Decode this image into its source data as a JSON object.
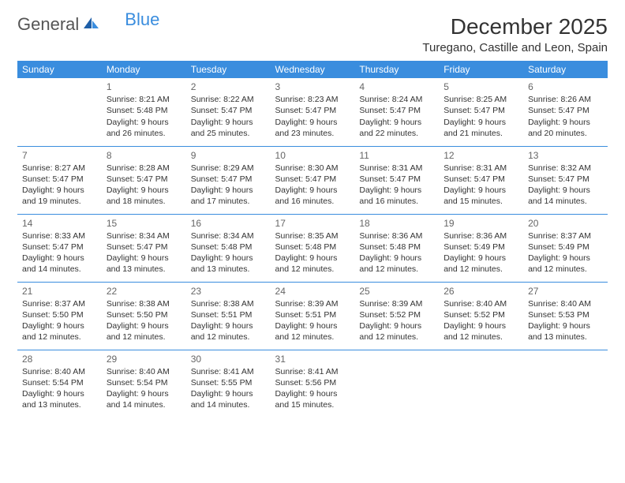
{
  "logo": {
    "text1": "General",
    "text2": "Blue"
  },
  "title": "December 2025",
  "location": "Turegano, Castille and Leon, Spain",
  "colors": {
    "header_bg": "#3a8dde",
    "header_fg": "#ffffff",
    "rule": "#3a8dde",
    "text": "#333333",
    "daynum": "#666666",
    "logo_blue": "#3a8dde",
    "background": "#ffffff"
  },
  "fonts": {
    "base_family": "Arial",
    "title_size_pt": 21,
    "location_size_pt": 11,
    "header_size_pt": 9,
    "cell_size_pt": 8
  },
  "layout": {
    "columns": 7,
    "rows": 5,
    "first_day_column_index": 1
  },
  "weekdays": [
    "Sunday",
    "Monday",
    "Tuesday",
    "Wednesday",
    "Thursday",
    "Friday",
    "Saturday"
  ],
  "days": [
    {
      "n": 1,
      "sunrise": "8:21 AM",
      "sunset": "5:48 PM",
      "daylight": "9 hours and 26 minutes."
    },
    {
      "n": 2,
      "sunrise": "8:22 AM",
      "sunset": "5:47 PM",
      "daylight": "9 hours and 25 minutes."
    },
    {
      "n": 3,
      "sunrise": "8:23 AM",
      "sunset": "5:47 PM",
      "daylight": "9 hours and 23 minutes."
    },
    {
      "n": 4,
      "sunrise": "8:24 AM",
      "sunset": "5:47 PM",
      "daylight": "9 hours and 22 minutes."
    },
    {
      "n": 5,
      "sunrise": "8:25 AM",
      "sunset": "5:47 PM",
      "daylight": "9 hours and 21 minutes."
    },
    {
      "n": 6,
      "sunrise": "8:26 AM",
      "sunset": "5:47 PM",
      "daylight": "9 hours and 20 minutes."
    },
    {
      "n": 7,
      "sunrise": "8:27 AM",
      "sunset": "5:47 PM",
      "daylight": "9 hours and 19 minutes."
    },
    {
      "n": 8,
      "sunrise": "8:28 AM",
      "sunset": "5:47 PM",
      "daylight": "9 hours and 18 minutes."
    },
    {
      "n": 9,
      "sunrise": "8:29 AM",
      "sunset": "5:47 PM",
      "daylight": "9 hours and 17 minutes."
    },
    {
      "n": 10,
      "sunrise": "8:30 AM",
      "sunset": "5:47 PM",
      "daylight": "9 hours and 16 minutes."
    },
    {
      "n": 11,
      "sunrise": "8:31 AM",
      "sunset": "5:47 PM",
      "daylight": "9 hours and 16 minutes."
    },
    {
      "n": 12,
      "sunrise": "8:31 AM",
      "sunset": "5:47 PM",
      "daylight": "9 hours and 15 minutes."
    },
    {
      "n": 13,
      "sunrise": "8:32 AM",
      "sunset": "5:47 PM",
      "daylight": "9 hours and 14 minutes."
    },
    {
      "n": 14,
      "sunrise": "8:33 AM",
      "sunset": "5:47 PM",
      "daylight": "9 hours and 14 minutes."
    },
    {
      "n": 15,
      "sunrise": "8:34 AM",
      "sunset": "5:47 PM",
      "daylight": "9 hours and 13 minutes."
    },
    {
      "n": 16,
      "sunrise": "8:34 AM",
      "sunset": "5:48 PM",
      "daylight": "9 hours and 13 minutes."
    },
    {
      "n": 17,
      "sunrise": "8:35 AM",
      "sunset": "5:48 PM",
      "daylight": "9 hours and 12 minutes."
    },
    {
      "n": 18,
      "sunrise": "8:36 AM",
      "sunset": "5:48 PM",
      "daylight": "9 hours and 12 minutes."
    },
    {
      "n": 19,
      "sunrise": "8:36 AM",
      "sunset": "5:49 PM",
      "daylight": "9 hours and 12 minutes."
    },
    {
      "n": 20,
      "sunrise": "8:37 AM",
      "sunset": "5:49 PM",
      "daylight": "9 hours and 12 minutes."
    },
    {
      "n": 21,
      "sunrise": "8:37 AM",
      "sunset": "5:50 PM",
      "daylight": "9 hours and 12 minutes."
    },
    {
      "n": 22,
      "sunrise": "8:38 AM",
      "sunset": "5:50 PM",
      "daylight": "9 hours and 12 minutes."
    },
    {
      "n": 23,
      "sunrise": "8:38 AM",
      "sunset": "5:51 PM",
      "daylight": "9 hours and 12 minutes."
    },
    {
      "n": 24,
      "sunrise": "8:39 AM",
      "sunset": "5:51 PM",
      "daylight": "9 hours and 12 minutes."
    },
    {
      "n": 25,
      "sunrise": "8:39 AM",
      "sunset": "5:52 PM",
      "daylight": "9 hours and 12 minutes."
    },
    {
      "n": 26,
      "sunrise": "8:40 AM",
      "sunset": "5:52 PM",
      "daylight": "9 hours and 12 minutes."
    },
    {
      "n": 27,
      "sunrise": "8:40 AM",
      "sunset": "5:53 PM",
      "daylight": "9 hours and 13 minutes."
    },
    {
      "n": 28,
      "sunrise": "8:40 AM",
      "sunset": "5:54 PM",
      "daylight": "9 hours and 13 minutes."
    },
    {
      "n": 29,
      "sunrise": "8:40 AM",
      "sunset": "5:54 PM",
      "daylight": "9 hours and 14 minutes."
    },
    {
      "n": 30,
      "sunrise": "8:41 AM",
      "sunset": "5:55 PM",
      "daylight": "9 hours and 14 minutes."
    },
    {
      "n": 31,
      "sunrise": "8:41 AM",
      "sunset": "5:56 PM",
      "daylight": "9 hours and 15 minutes."
    }
  ],
  "labels": {
    "sunrise": "Sunrise:",
    "sunset": "Sunset:",
    "daylight": "Daylight:"
  }
}
